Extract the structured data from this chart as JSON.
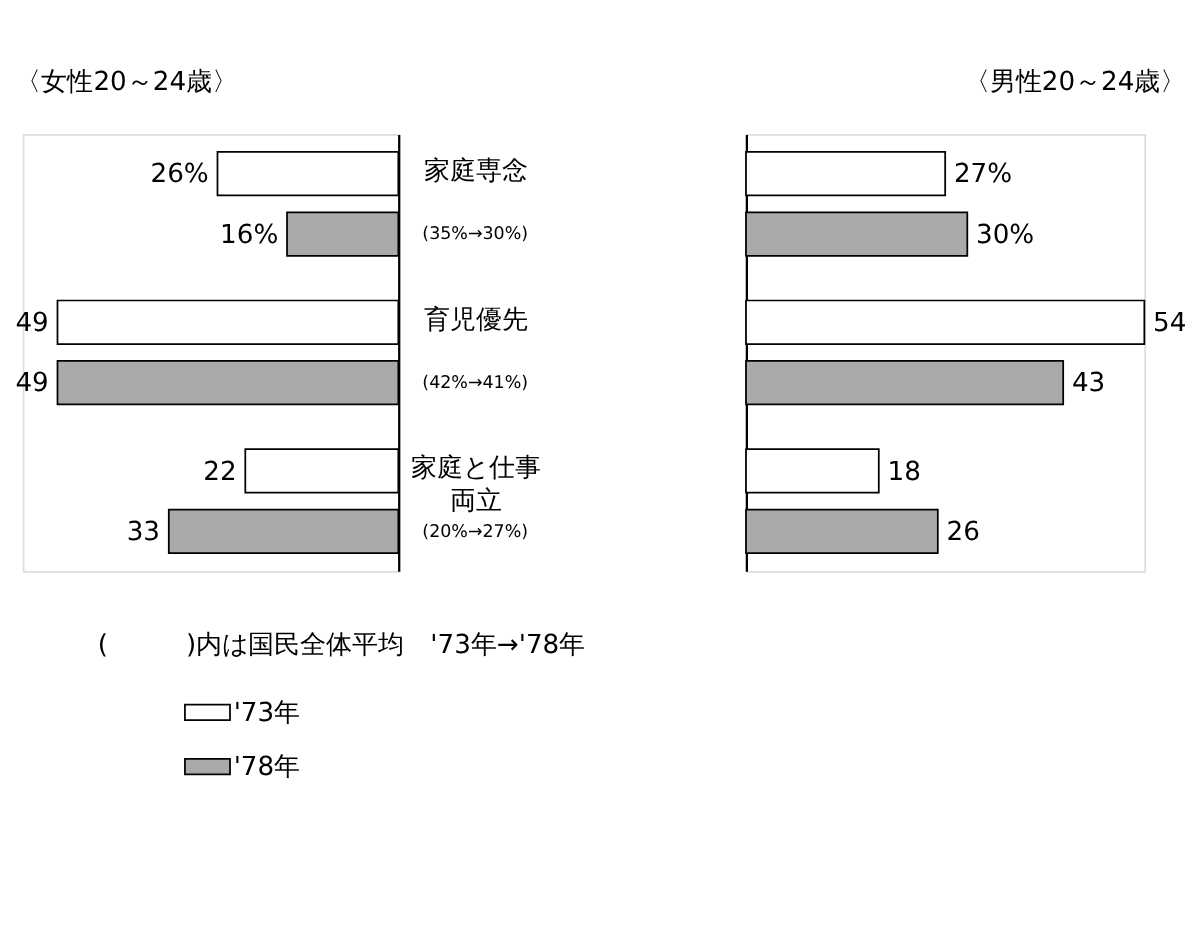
{
  "chart_data": [
    {
      "type": "bar",
      "orientation": "horizontal",
      "title": "〈女性20～24歳〉",
      "categories": [
        "家庭専念",
        "育児優先",
        "家庭と仕事両立"
      ],
      "series": [
        {
          "name": "'73年",
          "color": "#ffffff",
          "values": [
            26,
            49,
            22
          ],
          "value_labels": [
            "26%",
            "49",
            "22"
          ]
        },
        {
          "name": "'78年",
          "color": "#aaaaaa",
          "values": [
            16,
            49,
            33
          ],
          "value_labels": [
            "16%",
            "49",
            "33"
          ]
        }
      ],
      "annotations": [
        "(35%→30%)",
        "(42%→41%)",
        "(20%→27%)",
        "(　　　)内は国民全体平均　'73年→'78年"
      ],
      "legend": "bottom",
      "grid": false,
      "tick_labels": "y"
    },
    {
      "type": "bar",
      "orientation": "horizontal",
      "title": "〈男性20～24歳〉",
      "categories": [
        "家庭専念",
        "育児優先",
        "家庭と仕事両立"
      ],
      "series": [
        {
          "name": "'73年",
          "color": "#ffffff",
          "values": [
            27,
            54,
            18
          ],
          "value_labels": [
            "27%",
            "54",
            "18"
          ]
        },
        {
          "name": "'78年",
          "color": "#aaaaaa",
          "values": [
            30,
            43,
            26
          ],
          "value_labels": [
            "30%",
            "43",
            "26"
          ]
        }
      ],
      "legend": false,
      "grid": false,
      "tick_labels": false
    }
  ]
}
